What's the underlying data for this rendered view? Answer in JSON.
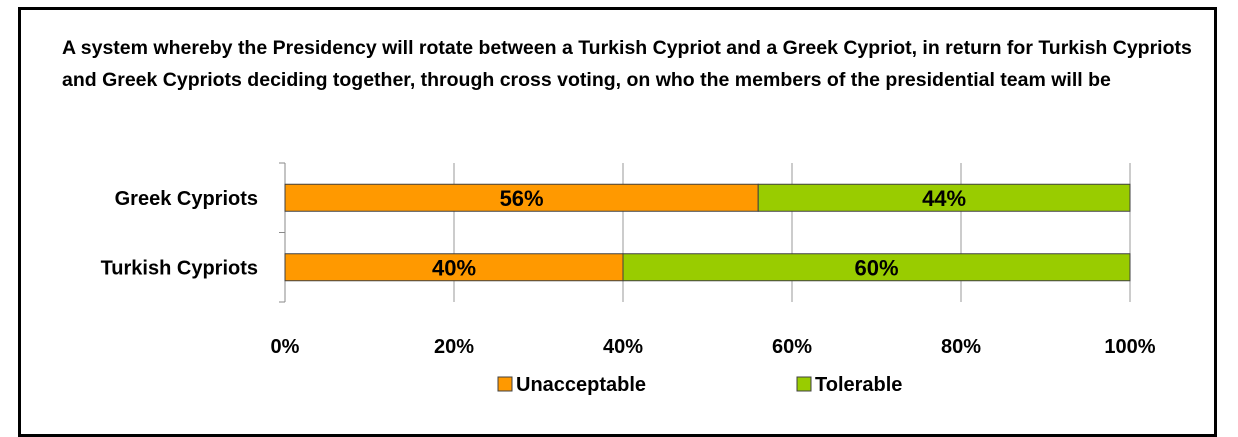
{
  "chart_data": {
    "type": "bar",
    "stacked": true,
    "orientation": "horizontal",
    "percent_stacked": true,
    "title": "A system whereby the Presidency will rotate between a Turkish Cypriot and a Greek Cypriot, in return for Turkish Cypriots and Greek Cypriots deciding together, through cross voting, on who the members of the presidential team will be",
    "categories": [
      "Greek Cypriots",
      "Turkish Cypriots"
    ],
    "series": [
      {
        "name": "Unacceptable",
        "values": [
          56,
          40
        ],
        "labels": [
          "56%",
          "40%"
        ],
        "color": "#ff9900"
      },
      {
        "name": "Tolerable",
        "values": [
          44,
          60
        ],
        "labels": [
          "44%",
          "60%"
        ],
        "color": "#99cc00"
      }
    ],
    "xlim": [
      0,
      100
    ],
    "x_ticks": [
      "0%",
      "20%",
      "40%",
      "60%",
      "80%",
      "100%"
    ],
    "grid": true,
    "legend": "bottom"
  }
}
